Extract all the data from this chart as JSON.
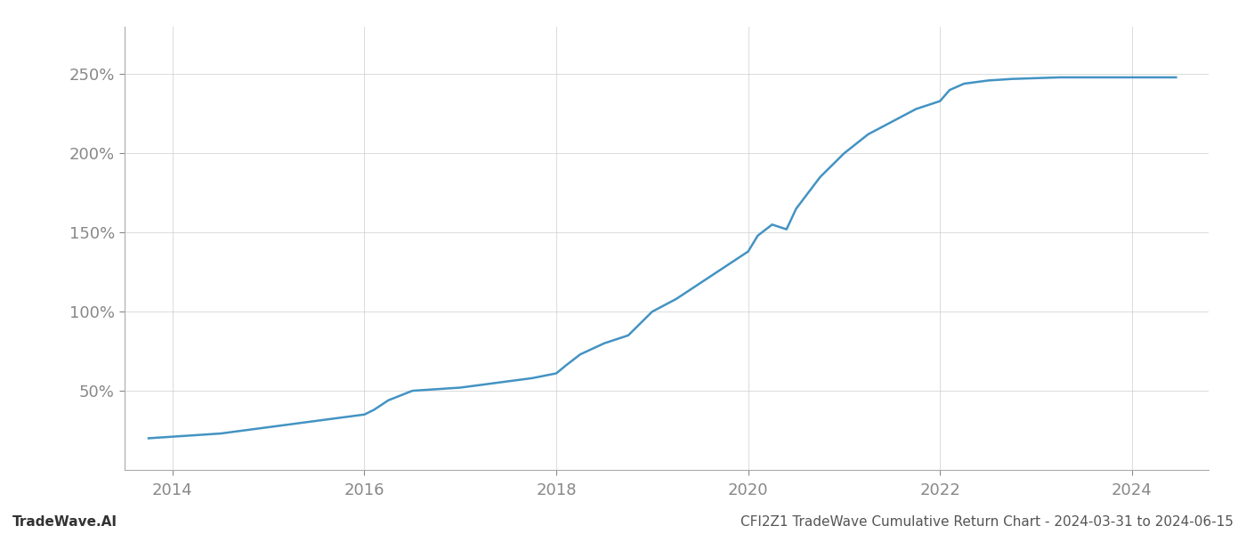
{
  "title": "",
  "xlabel": "",
  "ylabel": "",
  "line_color": "#4393c3",
  "line_width": 1.8,
  "background_color": "#ffffff",
  "grid_color": "#cccccc",
  "grid_alpha": 0.7,
  "xlim": [
    2013.5,
    2024.8
  ],
  "ylim": [
    0,
    280
  ],
  "yticks": [
    50,
    100,
    150,
    200,
    250
  ],
  "xticks": [
    2014,
    2016,
    2018,
    2020,
    2022,
    2024
  ],
  "bottom_left_text": "TradeWave.AI",
  "bottom_right_text": "CFI2Z1 TradeWave Cumulative Return Chart - 2024-03-31 to 2024-06-15",
  "x_data": [
    2013.75,
    2014.0,
    2014.25,
    2014.5,
    2014.75,
    2015.0,
    2015.25,
    2015.5,
    2015.75,
    2016.0,
    2016.1,
    2016.25,
    2016.5,
    2016.75,
    2017.0,
    2017.25,
    2017.5,
    2017.75,
    2018.0,
    2018.1,
    2018.25,
    2018.5,
    2018.75,
    2019.0,
    2019.25,
    2019.5,
    2019.75,
    2020.0,
    2020.1,
    2020.25,
    2020.4,
    2020.5,
    2020.75,
    2021.0,
    2021.25,
    2021.5,
    2021.75,
    2022.0,
    2022.1,
    2022.25,
    2022.5,
    2022.75,
    2023.0,
    2023.25,
    2023.5,
    2023.75,
    2024.0,
    2024.25,
    2024.46
  ],
  "y_data": [
    20,
    21,
    22,
    23,
    25,
    27,
    29,
    31,
    33,
    35,
    38,
    44,
    50,
    51,
    52,
    54,
    56,
    58,
    61,
    66,
    73,
    80,
    85,
    100,
    108,
    118,
    128,
    138,
    148,
    155,
    152,
    165,
    185,
    200,
    212,
    220,
    228,
    233,
    240,
    244,
    246,
    247,
    247.5,
    248,
    248,
    248,
    248,
    248,
    248
  ]
}
